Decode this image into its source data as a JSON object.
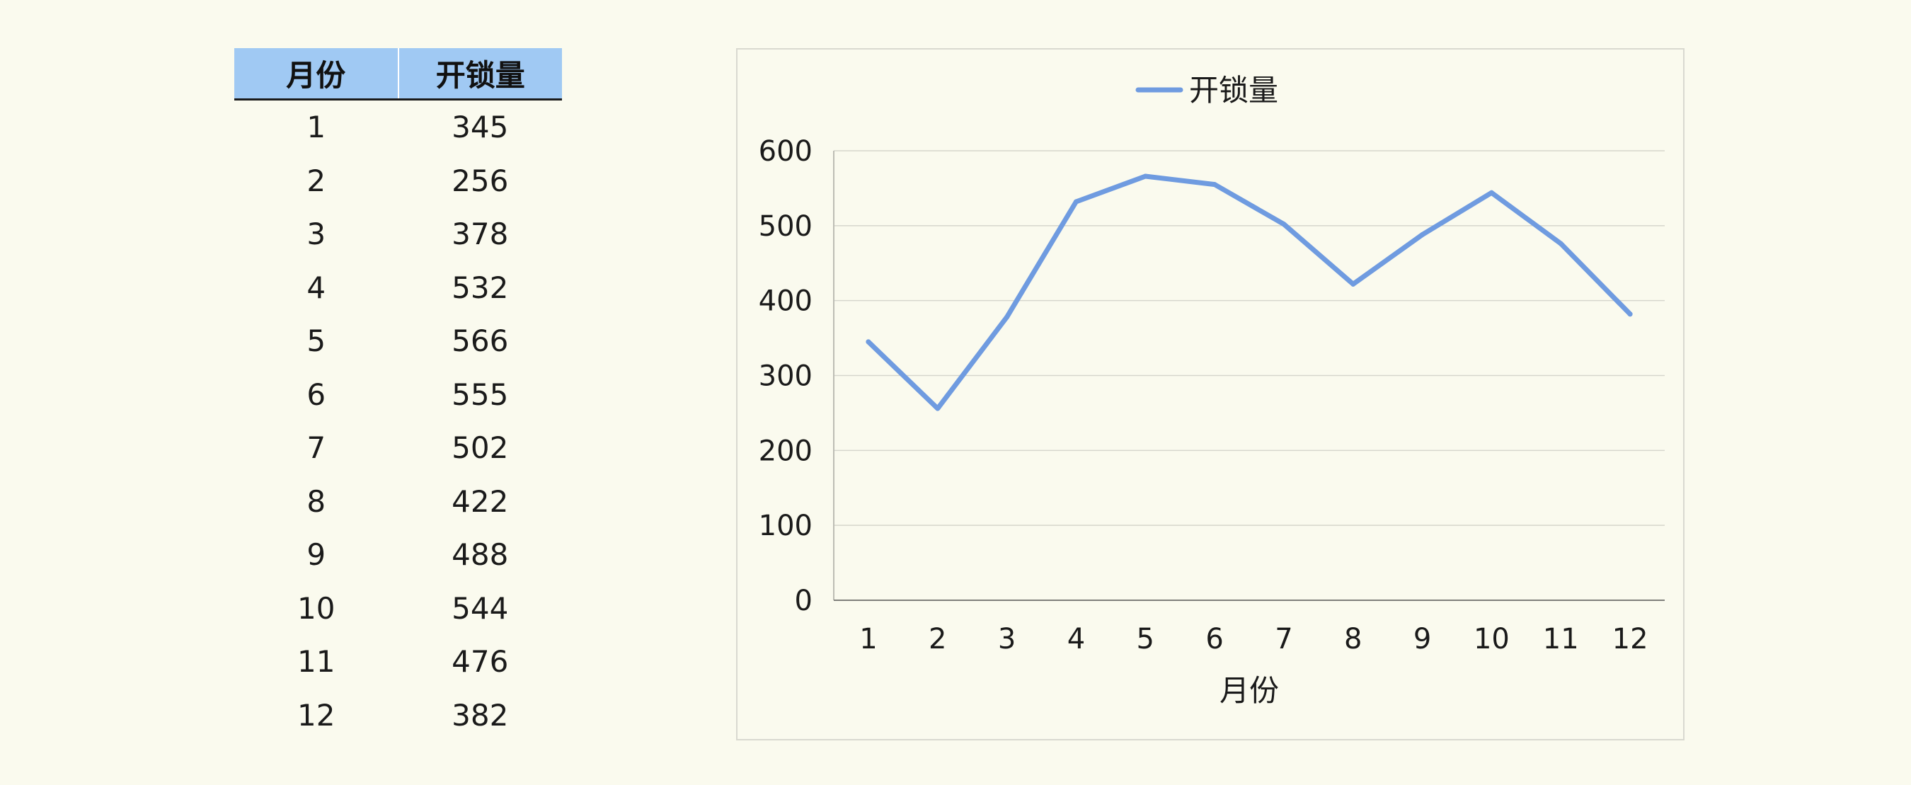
{
  "table": {
    "headers": [
      "月份",
      "开锁量"
    ],
    "rows": [
      [
        "1",
        "345"
      ],
      [
        "2",
        "256"
      ],
      [
        "3",
        "378"
      ],
      [
        "4",
        "532"
      ],
      [
        "5",
        "566"
      ],
      [
        "6",
        "555"
      ],
      [
        "7",
        "502"
      ],
      [
        "8",
        "422"
      ],
      [
        "9",
        "488"
      ],
      [
        "10",
        "544"
      ],
      [
        "11",
        "476"
      ],
      [
        "12",
        "382"
      ]
    ]
  },
  "chart_data": {
    "type": "line",
    "categories": [
      "1",
      "2",
      "3",
      "4",
      "5",
      "6",
      "7",
      "8",
      "9",
      "10",
      "11",
      "12"
    ],
    "series": [
      {
        "name": "开锁量",
        "values": [
          345,
          256,
          378,
          532,
          566,
          555,
          502,
          422,
          488,
          544,
          476,
          382
        ],
        "color": "#6f9be0"
      }
    ],
    "xlabel": "月份",
    "ylabel": "",
    "ylim": [
      0,
      600
    ],
    "yticks": [
      0,
      100,
      200,
      300,
      400,
      500,
      600
    ],
    "grid": true,
    "legend": "top-center"
  }
}
